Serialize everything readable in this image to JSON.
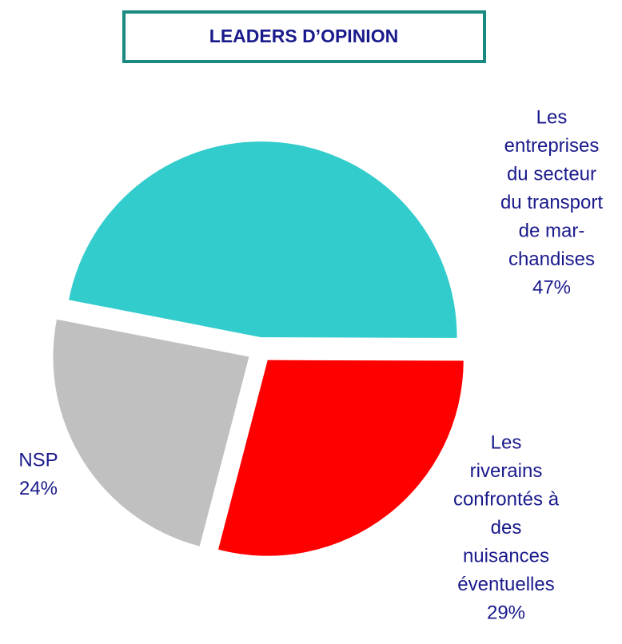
{
  "chart_data": {
    "type": "pie",
    "title": "LEADERS D’OPINION",
    "categories": [
      [
        "Les",
        "entreprises",
        "du secteur",
        "du transport",
        "de mar-",
        "chandises"
      ],
      [
        "Les",
        "riverains",
        "confrontés à",
        "des",
        "nuisances",
        "éventuelles"
      ],
      [
        "NSP"
      ]
    ],
    "values": [
      47,
      29,
      24
    ],
    "value_labels": [
      "47%",
      "29%",
      "24%"
    ],
    "colors": [
      "#33cccc",
      "#ff0000",
      "#c0c0c0"
    ]
  }
}
